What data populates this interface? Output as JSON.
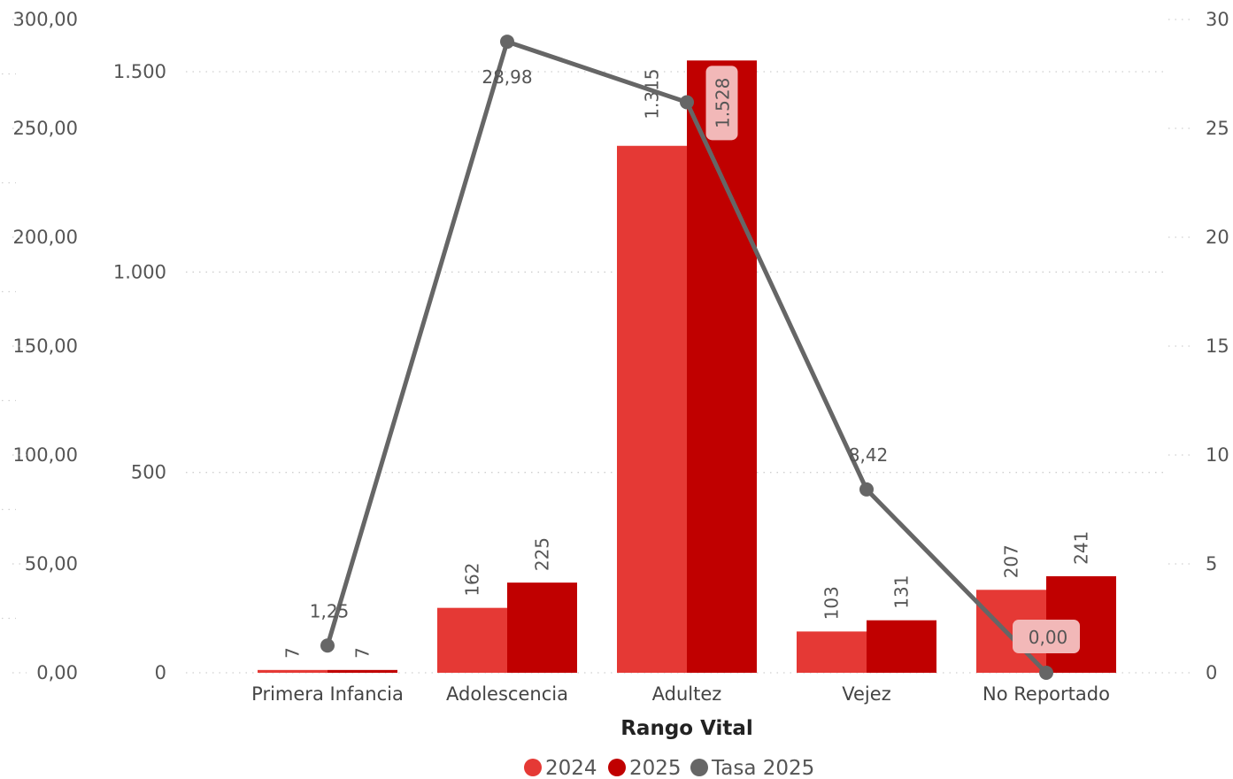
{
  "chart_data": {
    "type": "bar",
    "xlabel": "Rango Vital",
    "categories": [
      "Primera Infancia",
      "Adolescencia",
      "Adultez",
      "Vejez",
      "No Reportado"
    ],
    "series": [
      {
        "name": "2024",
        "kind": "bar",
        "axis": "left",
        "color": "#e53935",
        "values": [
          7,
          162,
          1315,
          103,
          207
        ]
      },
      {
        "name": "2025",
        "kind": "bar",
        "axis": "left",
        "color": "#c00000",
        "values": [
          7,
          225,
          1528,
          131,
          241
        ]
      },
      {
        "name": "Tasa 2025",
        "kind": "line",
        "axis": "right",
        "color": "#666666",
        "values": [
          1.25,
          28.98,
          26.2,
          8.42,
          0.0
        ]
      }
    ],
    "data_labels": {
      "2024": [
        "7",
        "162",
        "1.315",
        "103",
        "207"
      ],
      "2025": [
        "7",
        "225",
        "1.528",
        "131",
        "241"
      ],
      "Tasa 2025": [
        "1,25",
        "28,98",
        "",
        "8,42",
        "0,00"
      ]
    },
    "axes": {
      "left": {
        "min": 0,
        "max": 1500,
        "ticks": [
          0,
          500,
          1000,
          1500
        ],
        "tick_labels": [
          "0",
          "500",
          "1.000",
          "1.500"
        ]
      },
      "left_outer": {
        "min": 0,
        "max": 300,
        "ticks": [
          0,
          50,
          100,
          150,
          200,
          250,
          300
        ],
        "tick_labels": [
          "0,00",
          "50,00",
          "100,00",
          "150,00",
          "200,00",
          "250,00",
          "300,00"
        ]
      },
      "right": {
        "min": 0,
        "max": 30,
        "ticks": [
          0,
          5,
          10,
          15,
          20,
          25,
          30
        ],
        "tick_labels": [
          "0",
          "5",
          "10",
          "15",
          "20",
          "25",
          "30"
        ]
      }
    },
    "grid": true,
    "legend": {
      "placement": "bottom",
      "entries": [
        "2024",
        "2025",
        "Tasa 2025"
      ]
    }
  }
}
